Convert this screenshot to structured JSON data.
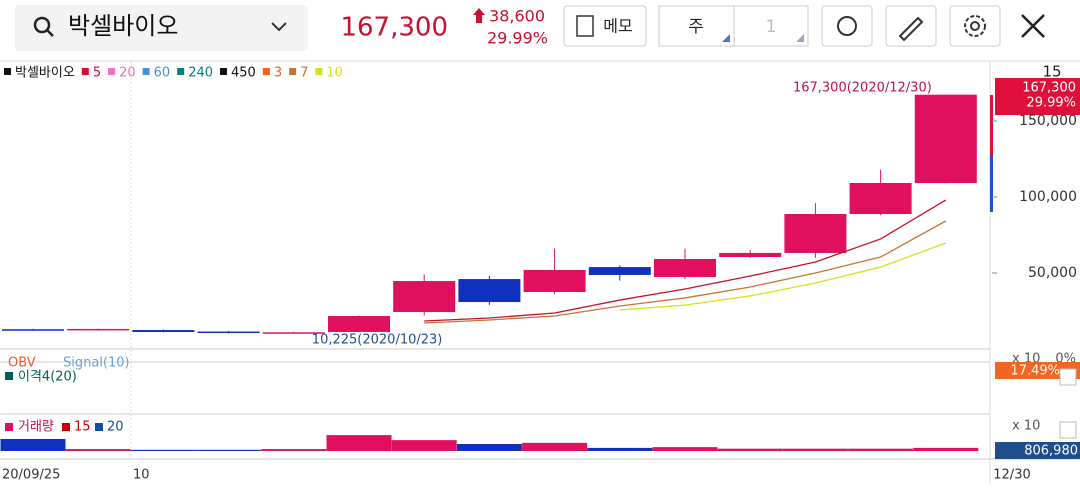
{
  "header": {
    "stock_name": "박셀바이오",
    "price": "167,300",
    "change": "38,600",
    "change_pct": "29.99%",
    "memo_button": "메모",
    "period_button": "주",
    "period_count": "1"
  },
  "legend": [
    "박셀바이오",
    "5",
    "20",
    "60",
    "240",
    "450",
    "3",
    "7",
    "10"
  ],
  "price_tag": {
    "price": "167,300",
    "pct": "29.99%"
  },
  "axis_top_label": "15",
  "x_labels": [
    "20/09/25",
    "10",
    "12/30"
  ],
  "indicator_panel": {
    "obv": "OBV",
    "signal": "Signal(10)",
    "disparity": "이격4(20)",
    "scale": "x 10",
    "zero": "0%",
    "tag": "17.49%"
  },
  "volume_panel": {
    "title": "거래량",
    "ma1": "15",
    "ma2": "20",
    "scale": "x 10",
    "tag": "806,980"
  },
  "chart_data": {
    "type": "candlestick",
    "annotations": [
      "167,300(2020/12/30)",
      "10,225(2020/10/23)"
    ],
    "up_color": "#e0105e",
    "down_color": "#1030c0",
    "ylim": [
      0,
      188800
    ],
    "yticks": [
      {
        "value": 50000,
        "label": "50,000"
      },
      {
        "value": 100000,
        "label": "100,000"
      },
      {
        "value": 150000,
        "label": "150,000"
      }
    ],
    "open": [
      13000,
      13100,
      12500,
      11500,
      10800,
      11200,
      24300,
      46000,
      37500,
      53900,
      47400,
      60500,
      63200,
      88800,
      109200
    ],
    "high": [
      13300,
      13400,
      12800,
      11800,
      11300,
      22000,
      49000,
      48000,
      66000,
      55000,
      66000,
      65000,
      96000,
      118000,
      167300
    ],
    "low": [
      12500,
      12800,
      11000,
      10300,
      10225,
      11000,
      22000,
      29000,
      36000,
      45000,
      46000,
      60000,
      60000,
      88000,
      109000
    ],
    "close": [
      12700,
      13200,
      11200,
      10500,
      11000,
      21700,
      44700,
      30900,
      52000,
      48700,
      59200,
      63200,
      88800,
      109200,
      167300
    ],
    "series": [
      {
        "name": "5",
        "color": "#c8102e",
        "values": [
          null,
          null,
          null,
          null,
          null,
          null,
          18400,
          20400,
          23700,
          32200,
          39500,
          48000,
          57200,
          72400,
          98000
        ]
      },
      {
        "name": "7",
        "color": "#c87533",
        "values": [
          null,
          null,
          null,
          null,
          null,
          null,
          17100,
          19100,
          21700,
          28300,
          33600,
          40800,
          50000,
          60500,
          84200
        ]
      },
      {
        "name": "10",
        "color": "#d8e020",
        "values": [
          null,
          null,
          null,
          null,
          null,
          null,
          null,
          null,
          null,
          25700,
          28900,
          34900,
          43400,
          53900,
          69700
        ]
      }
    ],
    "volume": {
      "ylim": [
        0,
        8000000
      ],
      "values": [
        3100000,
        500000,
        300000,
        300000,
        500000,
        4100000,
        2800000,
        1800000,
        2100000,
        800000,
        1000000,
        600000,
        600000,
        600000,
        806980
      ]
    }
  }
}
